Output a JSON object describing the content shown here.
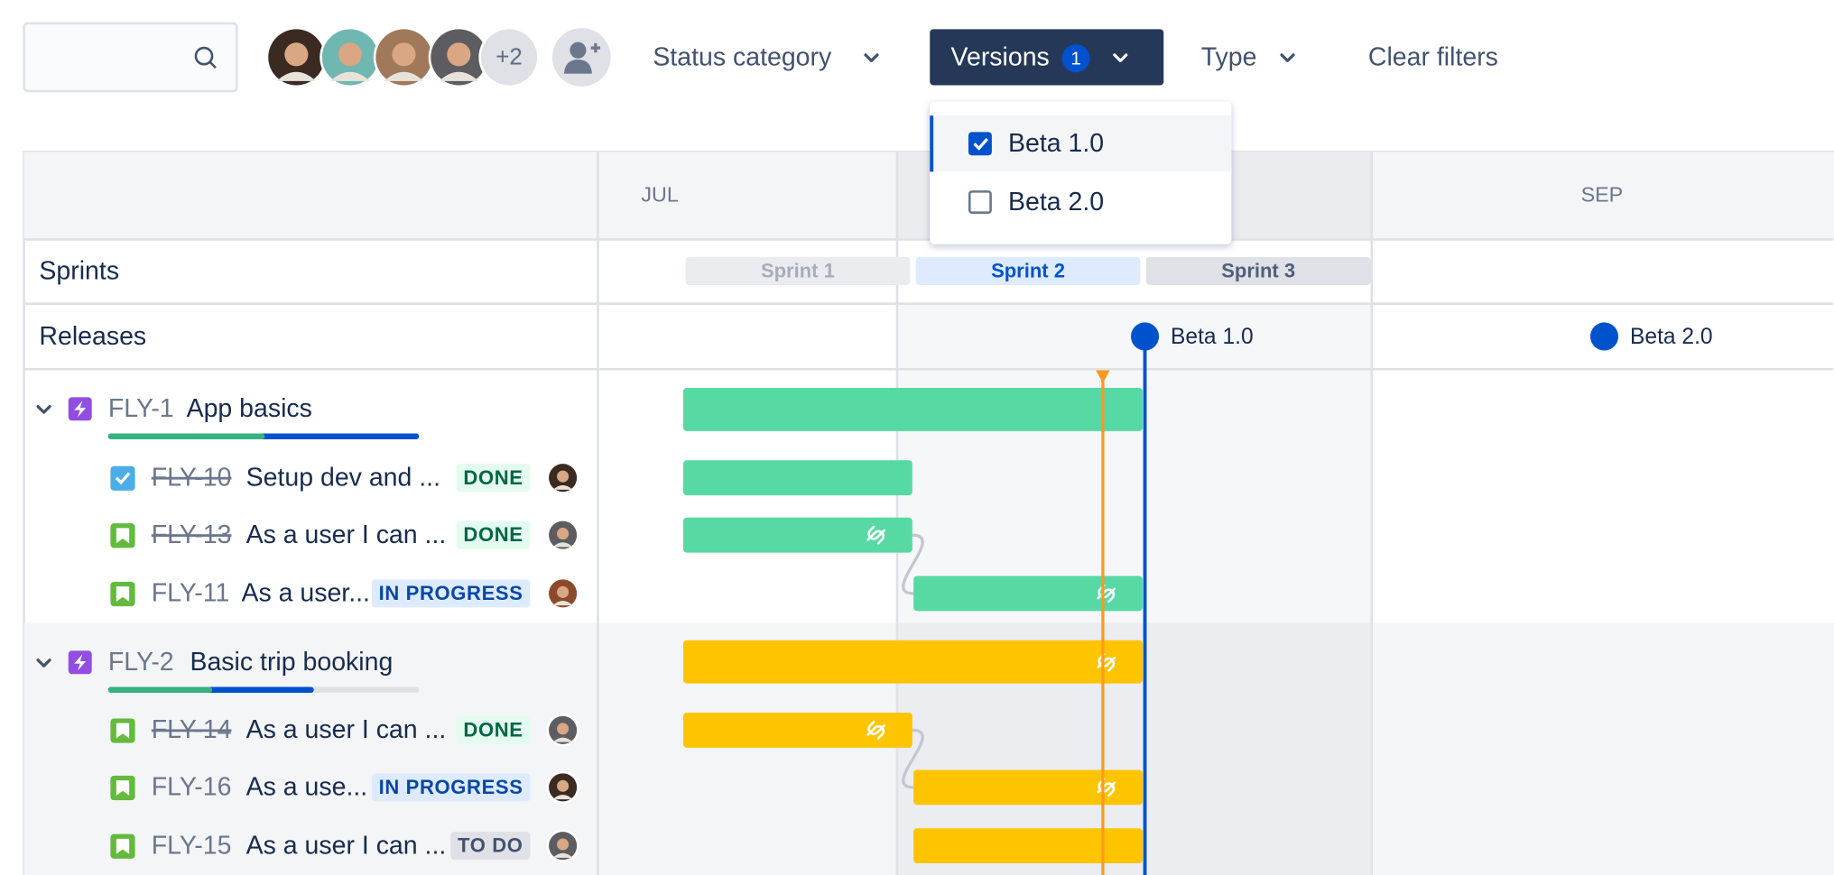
{
  "toolbar": {
    "avatar_overflow": "+2",
    "filters": [
      "Status category",
      "Versions",
      "Type"
    ],
    "versions_count": "1",
    "clear_filters": "Clear filters"
  },
  "versions_dropdown": {
    "options": [
      {
        "label": "Beta 1.0",
        "checked": true
      },
      {
        "label": "Beta 2.0",
        "checked": false
      }
    ]
  },
  "timeline": {
    "months": [
      "JUL",
      "SEP"
    ],
    "sprints": {
      "label": "Sprints",
      "items": [
        "Sprint 1",
        "Sprint 2",
        "Sprint 3"
      ]
    },
    "releases": {
      "label": "Releases",
      "items": [
        "Beta 1.0",
        "Beta 2.0"
      ]
    }
  },
  "epics": [
    {
      "key": "FLY-1",
      "title": "App basics",
      "children": [
        {
          "key": "FLY-10",
          "title": "Setup dev and ...",
          "status": "DONE"
        },
        {
          "key": "FLY-13",
          "title": "As a user I can ...",
          "status": "DONE"
        },
        {
          "key": "FLY-11",
          "title": "As a user...",
          "status": "IN PROGRESS"
        }
      ]
    },
    {
      "key": "FLY-2",
      "title": "Basic trip booking",
      "children": [
        {
          "key": "FLY-14",
          "title": "As a user I can ...",
          "status": "DONE"
        },
        {
          "key": "FLY-16",
          "title": "As a use...",
          "status": "IN PROGRESS"
        },
        {
          "key": "FLY-15",
          "title": "As a user I can ...",
          "status": "TO DO"
        }
      ]
    }
  ]
}
